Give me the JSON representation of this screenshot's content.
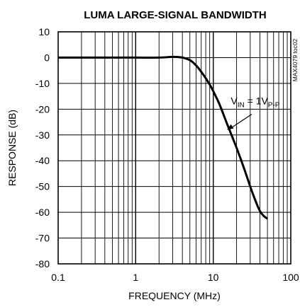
{
  "chart_data": {
    "type": "line",
    "title": "LUMA LARGE-SIGNAL BANDWIDTH",
    "xlabel": "FREQUENCY (MHz)",
    "ylabel": "RESPONSE (dB)",
    "x_scale": "log",
    "xlim": [
      0.1,
      100
    ],
    "ylim": [
      -80,
      10
    ],
    "x_ticks": [
      "0.1",
      "1",
      "10",
      "100"
    ],
    "y_ticks": [
      "10",
      "0",
      "-10",
      "-20",
      "-30",
      "-40",
      "-50",
      "-60",
      "-70",
      "-80"
    ],
    "grid": true,
    "side_label": "MAX4079 toc02",
    "annotation": {
      "prefix": "V",
      "prefix_sub": "IN",
      "middle": " = 1V",
      "suffix_sub": "P-P",
      "at": [
        15,
        -28
      ]
    },
    "series": [
      {
        "x": [
          0.1,
          0.2,
          0.5,
          1,
          2,
          3,
          4,
          5,
          6,
          7,
          8,
          9,
          10,
          12,
          15,
          20,
          25,
          30,
          35,
          40,
          45,
          50
        ],
        "y": [
          0,
          0,
          0,
          0,
          0,
          0.3,
          0,
          -1,
          -3,
          -5.5,
          -8,
          -10.5,
          -13,
          -18,
          -25.5,
          -35,
          -43,
          -50,
          -55.5,
          -59.5,
          -61.5,
          -62.5
        ],
        "color": "#000000"
      }
    ]
  }
}
